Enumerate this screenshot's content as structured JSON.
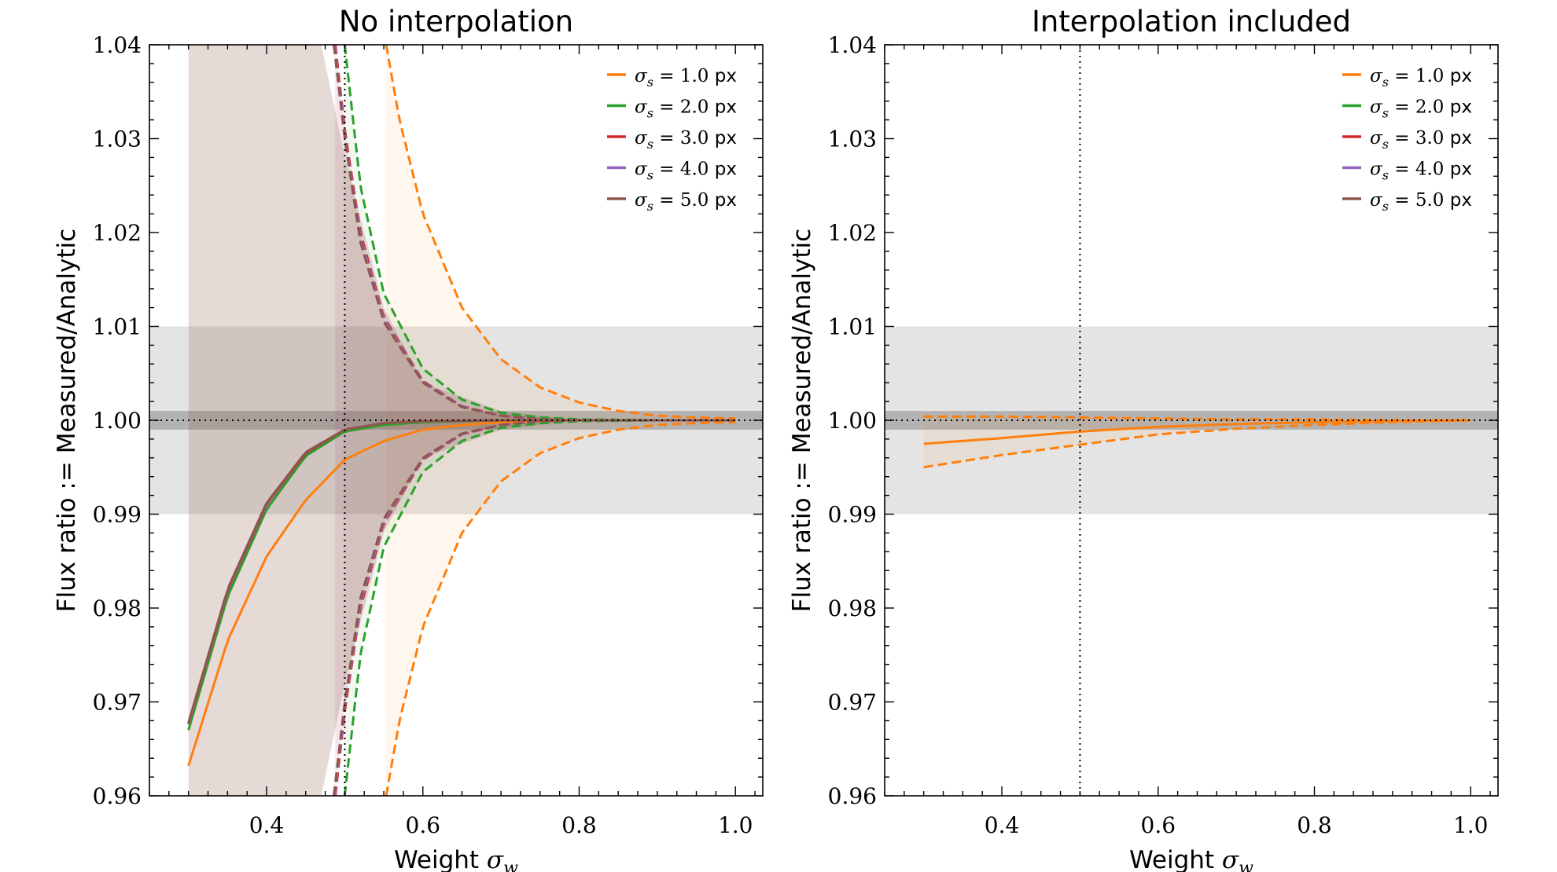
{
  "chart_data": [
    {
      "type": "line",
      "title": "No interpolation",
      "xlabel": "Weight σ_w",
      "ylabel": "Flux ratio := Measured/Analytic",
      "xlim": [
        0.25,
        1.035
      ],
      "ylim": [
        0.96,
        1.04
      ],
      "xticks": [
        "0.4",
        "0.6",
        "0.8",
        "1.0"
      ],
      "yticks": [
        "0.96",
        "0.97",
        "0.98",
        "0.99",
        "1.00",
        "1.01",
        "1.02",
        "1.03",
        "1.04"
      ],
      "reference_lines": {
        "vertical_x": 0.5,
        "horizontal_y": 1.0,
        "style": "dotted black"
      },
      "bands": [
        {
          "y": [
            0.99,
            1.01
          ],
          "color": "#e4e4e4"
        },
        {
          "y": [
            0.999,
            1.001
          ],
          "color": "#b3b3b3"
        }
      ],
      "legend": {
        "position": "top-right"
      },
      "series": [
        {
          "name": "σ_s = 1.0 px",
          "color": "#ff7f0e",
          "mean": {
            "x": [
              0.3,
              0.35,
              0.4,
              0.45,
              0.5,
              0.55,
              0.6,
              0.65,
              0.7,
              0.8,
              0.9,
              1.0
            ],
            "y": [
              0.9632,
              0.9765,
              0.9855,
              0.9915,
              0.9958,
              0.9978,
              0.999,
              0.9995,
              0.9998,
              1.0,
              1.0,
              1.0
            ]
          },
          "upper": {
            "x": [
              0.553,
              0.57,
              0.6,
              0.65,
              0.7,
              0.75,
              0.8,
              0.85,
              0.9,
              0.95,
              1.0
            ],
            "y": [
              1.04,
              1.032,
              1.022,
              1.012,
              1.0065,
              1.0035,
              1.0019,
              1.001,
              1.0005,
              1.0003,
              1.0002
            ]
          },
          "lower": {
            "x": [
              0.553,
              0.57,
              0.6,
              0.65,
              0.7,
              0.75,
              0.8,
              0.85,
              0.9,
              0.95,
              1.0
            ],
            "y": [
              0.96,
              0.968,
              0.978,
              0.988,
              0.9935,
              0.9965,
              0.9981,
              0.999,
              0.9995,
              0.9997,
              0.9998
            ]
          }
        },
        {
          "name": "σ_s = 2.0 px",
          "color": "#2ca02c",
          "mean": {
            "x": [
              0.3,
              0.35,
              0.4,
              0.45,
              0.5,
              0.55,
              0.6,
              0.65,
              0.7,
              0.8,
              0.9,
              1.0
            ],
            "y": [
              0.967,
              0.9812,
              0.9905,
              0.9962,
              0.9988,
              0.9995,
              0.9998,
              0.9999,
              1.0,
              1.0,
              1.0,
              1.0
            ]
          },
          "upper": {
            "x": [
              0.5,
              0.52,
              0.55,
              0.6,
              0.65,
              0.7,
              0.75,
              0.8,
              0.9,
              1.0
            ],
            "y": [
              1.04,
              1.025,
              1.0135,
              1.0055,
              1.0022,
              1.0008,
              1.0003,
              1.0001,
              1.0,
              1.0
            ]
          },
          "lower": {
            "x": [
              0.5,
              0.52,
              0.55,
              0.6,
              0.65,
              0.7,
              0.75,
              0.8,
              0.9,
              1.0
            ],
            "y": [
              0.96,
              0.975,
              0.9865,
              0.9945,
              0.9978,
              0.9992,
              0.9997,
              0.9999,
              1.0,
              1.0
            ]
          }
        },
        {
          "name": "σ_s = 3.0 px",
          "color": "#d62728",
          "mean": {
            "x": [
              0.3,
              0.35,
              0.4,
              0.45,
              0.5,
              0.55,
              0.6,
              0.7,
              0.8,
              1.0
            ],
            "y": [
              0.9676,
              0.9818,
              0.991,
              0.9965,
              0.999,
              0.9997,
              0.9999,
              1.0,
              1.0,
              1.0
            ]
          },
          "upper": {
            "x": [
              0.488,
              0.5,
              0.52,
              0.55,
              0.6,
              0.65,
              0.7,
              0.75,
              0.8,
              0.9,
              1.0
            ],
            "y": [
              1.04,
              1.031,
              1.02,
              1.011,
              1.0042,
              1.0015,
              1.0005,
              1.0001,
              1.0,
              1.0,
              1.0
            ]
          },
          "lower": {
            "x": [
              0.488,
              0.5,
              0.52,
              0.55,
              0.6,
              0.65,
              0.7,
              0.75,
              0.8,
              0.9,
              1.0
            ],
            "y": [
              0.96,
              0.969,
              0.98,
              0.989,
              0.9958,
              0.9985,
              0.9995,
              0.9999,
              1.0,
              1.0,
              1.0
            ]
          }
        },
        {
          "name": "σ_s = 4.0 px",
          "color": "#9467bd",
          "mean": {
            "x": [
              0.3,
              0.35,
              0.4,
              0.45,
              0.5,
              0.55,
              0.6,
              0.7,
              0.8,
              1.0
            ],
            "y": [
              0.9677,
              0.9819,
              0.9911,
              0.9966,
              0.999,
              0.9997,
              0.9999,
              1.0,
              1.0,
              1.0
            ]
          },
          "upper": {
            "x": [
              0.487,
              0.5,
              0.52,
              0.55,
              0.6,
              0.65,
              0.7,
              0.75,
              0.8,
              0.9,
              1.0
            ],
            "y": [
              1.04,
              1.0305,
              1.0195,
              1.0108,
              1.0041,
              1.0015,
              1.0005,
              1.0001,
              1.0,
              1.0,
              1.0
            ]
          },
          "lower": {
            "x": [
              0.487,
              0.5,
              0.52,
              0.55,
              0.6,
              0.65,
              0.7,
              0.75,
              0.8,
              0.9,
              1.0
            ],
            "y": [
              0.96,
              0.9695,
              0.9805,
              0.9892,
              0.9959,
              0.9985,
              0.9995,
              0.9999,
              1.0,
              1.0,
              1.0
            ]
          }
        },
        {
          "name": "σ_s = 5.0 px",
          "color": "#8c564b",
          "mean": {
            "x": [
              0.3,
              0.35,
              0.4,
              0.45,
              0.5,
              0.55,
              0.6,
              0.7,
              0.8,
              1.0
            ],
            "y": [
              0.9678,
              0.982,
              0.9912,
              0.9966,
              0.999,
              0.9997,
              0.9999,
              1.0,
              1.0,
              1.0
            ]
          },
          "upper": {
            "x": [
              0.486,
              0.5,
              0.52,
              0.55,
              0.6,
              0.65,
              0.7,
              0.75,
              0.8,
              0.9,
              1.0
            ],
            "y": [
              1.04,
              1.03,
              1.019,
              1.0105,
              1.004,
              1.0014,
              1.0005,
              1.0001,
              1.0,
              1.0,
              1.0
            ]
          },
          "lower": {
            "x": [
              0.486,
              0.5,
              0.52,
              0.55,
              0.6,
              0.65,
              0.7,
              0.75,
              0.8,
              0.9,
              1.0
            ],
            "y": [
              0.96,
              0.97,
              0.981,
              0.9895,
              0.996,
              0.9986,
              0.9995,
              0.9999,
              1.0,
              1.0,
              1.0
            ]
          },
          "error_band": {
            "x": [
              0.3,
              0.4,
              0.45,
              0.47,
              0.5,
              0.55,
              0.6,
              0.7,
              0.8,
              0.9,
              1.0
            ],
            "upper": [
              1.04,
              1.04,
              1.04,
              1.04,
              1.028,
              1.012,
              1.004,
              1.001,
              1.0,
              1.0,
              1.0
            ],
            "lower": [
              0.96,
              0.96,
              0.96,
              0.96,
              0.972,
              0.988,
              0.996,
              0.999,
              1.0,
              1.0,
              1.0
            ]
          }
        }
      ]
    },
    {
      "type": "line",
      "title": "Interpolation included",
      "xlabel": "Weight σ_w",
      "ylabel": "Flux ratio := Measured/Analytic",
      "xlim": [
        0.25,
        1.035
      ],
      "ylim": [
        0.96,
        1.04
      ],
      "xticks": [
        "0.4",
        "0.6",
        "0.8",
        "1.0"
      ],
      "yticks": [
        "0.96",
        "0.97",
        "0.98",
        "0.99",
        "1.00",
        "1.01",
        "1.02",
        "1.03",
        "1.04"
      ],
      "reference_lines": {
        "vertical_x": 0.5,
        "horizontal_y": 1.0,
        "style": "dotted black"
      },
      "bands": [
        {
          "y": [
            0.99,
            1.01
          ],
          "color": "#e4e4e4"
        },
        {
          "y": [
            0.999,
            1.001
          ],
          "color": "#b3b3b3"
        }
      ],
      "legend": {
        "position": "top-right"
      },
      "series": [
        {
          "name": "σ_s = 1.0 px",
          "color": "#ff7f0e",
          "mean": {
            "x": [
              0.3,
              0.4,
              0.5,
              0.6,
              0.7,
              0.8,
              0.9,
              1.0
            ],
            "y": [
              0.9975,
              0.9981,
              0.9988,
              0.9993,
              0.9996,
              0.9998,
              0.9999,
              1.0
            ]
          },
          "upper": {
            "x": [
              0.3,
              0.4,
              0.5,
              0.6,
              0.7,
              0.8,
              0.9,
              1.0
            ],
            "y": [
              1.0004,
              1.0004,
              1.0003,
              1.0002,
              1.0001,
              1.0001,
              1.0,
              1.0
            ]
          },
          "lower": {
            "x": [
              0.3,
              0.4,
              0.5,
              0.6,
              0.7,
              0.8,
              0.9,
              1.0
            ],
            "y": [
              0.995,
              0.9963,
              0.9974,
              0.9985,
              0.9991,
              0.9995,
              0.9998,
              1.0
            ]
          }
        },
        {
          "name": "σ_s = 2.0 px",
          "color": "#2ca02c"
        },
        {
          "name": "σ_s = 3.0 px",
          "color": "#d62728"
        },
        {
          "name": "σ_s = 4.0 px",
          "color": "#9467bd"
        },
        {
          "name": "σ_s = 5.0 px",
          "color": "#8c564b"
        }
      ]
    }
  ]
}
